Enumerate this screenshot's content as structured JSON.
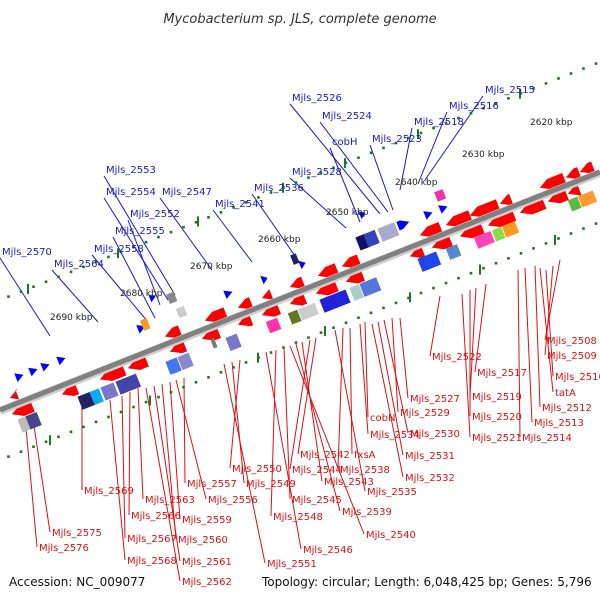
{
  "title": "Mycobacterium sp. JLS, complete genome",
  "footer": {
    "accession": "Accession: NC_009077",
    "topology": "Topology: circular; Length: 6,048,425 bp; Genes: 5,796"
  },
  "colors": {
    "upper_label": "#1a1acc",
    "lower_label": "#dd1111",
    "backbone": "#808080",
    "ruler_dot": "#1a7a1a",
    "forward_gene": "#0000ff",
    "reverse_gene": "#ff0000"
  },
  "kbp_ticks": [
    "2620 kbp",
    "2630 kbp",
    "2640 kbp",
    "2650 kbp",
    "2660 kbp",
    "2670 kbp",
    "2680 kbp",
    "2690 kbp"
  ],
  "upper_labels": [
    "Mjls_2515",
    "Mjls_2516",
    "Mjls_2518",
    "Mjls_2523",
    "Mjls_2524",
    "Mjls_2526",
    "cobH",
    "Mjls_2528",
    "Mjls_2536",
    "Mjls_2541",
    "Mjls_2547",
    "Mjls_2553",
    "Mjls_2554",
    "Mjls_2552",
    "Mjls_2555",
    "Mjls_2558",
    "Mjls_2564",
    "Mjls_2570"
  ],
  "lower_labels": [
    "Mjls_2508",
    "Mjls_2509",
    "Mjls_2510",
    "tatA",
    "Mjls_2512",
    "Mjls_2513",
    "Mjls_2514",
    "Mjls_2517",
    "Mjls_2519",
    "Mjls_2520",
    "Mjls_2521",
    "Mjls_2522",
    "Mjls_2527",
    "Mjls_2529",
    "Mjls_2530",
    "Mjls_2531",
    "Mjls_2532",
    "cobN",
    "Mjls_2534",
    "fxsA",
    "Mjls_2538",
    "Mjls_2535",
    "Mjls_2542",
    "Mjls_2544",
    "Mjls_2543",
    "Mjls_2539",
    "Mjls_2540",
    "Mjls_2545",
    "Mjls_2548",
    "Mjls_2546",
    "Mjls_2550",
    "Mjls_2549",
    "Mjls_2551",
    "Mjls_2557",
    "Mjls_2556",
    "Mjls_2559",
    "Mjls_2560",
    "Mjls_2561",
    "Mjls_2562",
    "Mjls_2563",
    "Mjls_2566",
    "Mjls_2567",
    "Mjls_2568",
    "Mjls_2569",
    "Mjls_2575",
    "Mjls_2576"
  ]
}
